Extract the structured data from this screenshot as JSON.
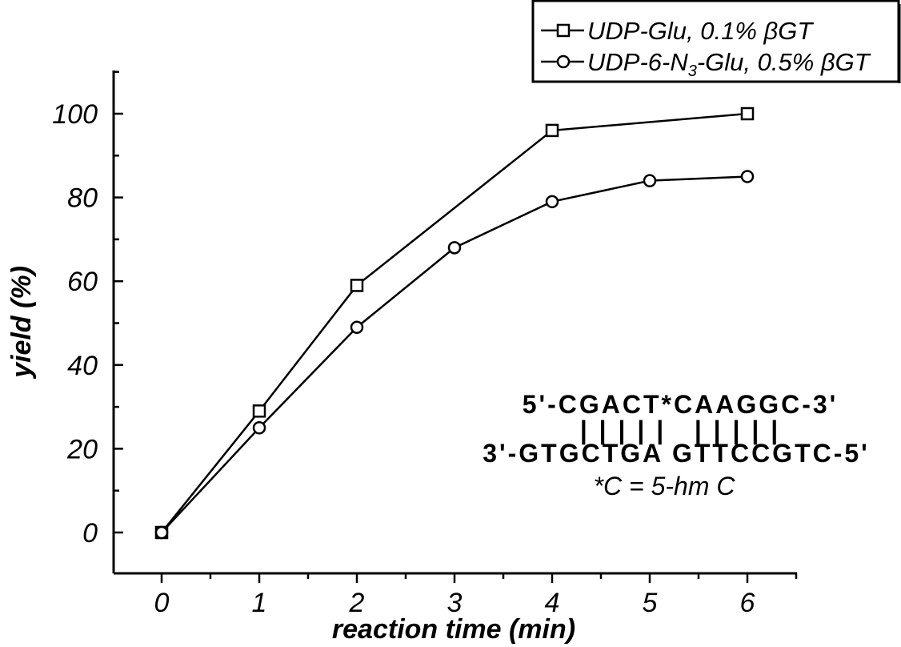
{
  "chart_data": {
    "type": "line",
    "title": "",
    "xlabel": "reaction time (min)",
    "ylabel": "yield (%)",
    "xlim": [
      -0.5,
      6.5
    ],
    "ylim": [
      -10,
      110
    ],
    "x_ticks": [
      "0",
      "1",
      "2",
      "3",
      "4",
      "5",
      "6"
    ],
    "y_ticks": [
      "0",
      "20",
      "40",
      "60",
      "80",
      "100"
    ],
    "grid": false,
    "legend_position": "top-right",
    "series": [
      {
        "name": "UDP-Glu, 0.1% βGT",
        "marker": "square",
        "points": [
          {
            "x": 0,
            "y": 0
          },
          {
            "x": 1,
            "y": 29
          },
          {
            "x": 2,
            "y": 59
          },
          {
            "x": 4,
            "y": 96
          },
          {
            "x": 6,
            "y": 100
          }
        ]
      },
      {
        "name": "UDP-6-N3-Glu, 0.5% βGT",
        "marker": "circle",
        "points": [
          {
            "x": 0,
            "y": 0
          },
          {
            "x": 1,
            "y": 25
          },
          {
            "x": 2,
            "y": 49
          },
          {
            "x": 3,
            "y": 68
          },
          {
            "x": 4,
            "y": 79
          },
          {
            "x": 5,
            "y": 84
          },
          {
            "x": 6,
            "y": 85
          }
        ]
      }
    ],
    "legend": {
      "entry1": "UDP-Glu, 0.1% βGT",
      "entry2_prefix": "UDP-6-N",
      "entry2_sub": "3",
      "entry2_suffix": "-Glu, 0.5% βGT"
    },
    "annotation": {
      "top_strand": "5'-CGACT*CAAGGC-3'",
      "pairing": "| | | | |   | | | | |",
      "bottom_strand": "3'-GTGCTGA GTTCCGTC-5'",
      "note": "*C = 5-hm C"
    }
  }
}
